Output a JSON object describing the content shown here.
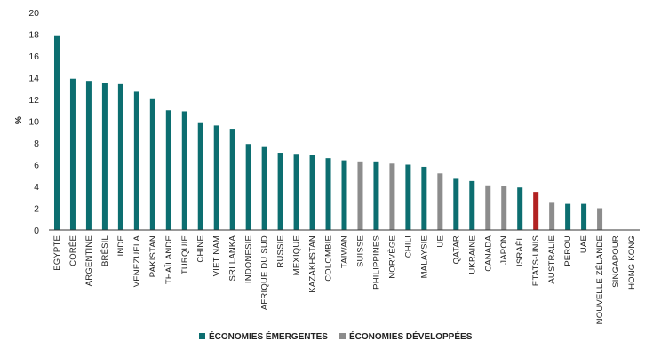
{
  "chart_data": {
    "type": "bar",
    "title": "",
    "xlabel": "",
    "ylabel": "%",
    "ylim": [
      0,
      20
    ],
    "yticks": [
      0,
      2,
      4,
      6,
      8,
      10,
      12,
      14,
      16,
      18,
      20
    ],
    "grid": false,
    "legend_position": "bottom",
    "categories": [
      "EGYPTE",
      "CORÉE",
      "ARGENTINE",
      "BRÉSIL",
      "INDE",
      "VENEZUELA",
      "PAKISTAN",
      "THAÏLANDE",
      "TURQUIE",
      "CHINE",
      "VIET NAM",
      "SRI LANKA",
      "INDONESIE",
      "AFRIQUE DU SUD",
      "RUSSIE",
      "MEXIQUE",
      "KAZAKHSTAN",
      "COLOMBIE",
      "TAIWAN",
      "SUISSE",
      "PHILIPPINES",
      "NORVÈGE",
      "CHILI",
      "MALAYSIE",
      "UE",
      "QATAR",
      "UKRAINE",
      "CANADA",
      "JAPON",
      "ISRAËL",
      "ETATS-UNIS",
      "AUSTRALIE",
      "PEROU",
      "UAE",
      "NOUVELLE ZÉLANDE",
      "SINGAPOUR",
      "HONG KONG"
    ],
    "values": [
      17.9,
      13.9,
      13.7,
      13.5,
      13.4,
      12.7,
      12.1,
      11.0,
      10.9,
      9.9,
      9.6,
      9.3,
      7.9,
      7.7,
      7.1,
      7.0,
      6.9,
      6.6,
      6.4,
      6.3,
      6.3,
      6.1,
      6.0,
      5.8,
      5.2,
      4.7,
      4.5,
      4.1,
      4.0,
      3.9,
      3.5,
      2.5,
      2.4,
      2.4,
      2.0,
      0,
      0
    ],
    "groups": [
      "emerging",
      "emerging",
      "emerging",
      "emerging",
      "emerging",
      "emerging",
      "emerging",
      "emerging",
      "emerging",
      "emerging",
      "emerging",
      "emerging",
      "emerging",
      "emerging",
      "emerging",
      "emerging",
      "emerging",
      "emerging",
      "emerging",
      "developed",
      "emerging",
      "developed",
      "emerging",
      "emerging",
      "developed",
      "emerging",
      "emerging",
      "developed",
      "developed",
      "emerging",
      "highlight",
      "developed",
      "emerging",
      "emerging",
      "developed",
      "developed",
      "developed"
    ],
    "legend": [
      {
        "key": "emerging",
        "label": "ÉCONOMIES ÉMERGENTES"
      },
      {
        "key": "developed",
        "label": "ÉCONOMIES DÉVELOPPÉES"
      }
    ],
    "colors": {
      "emerging": "#0c6e70",
      "developed": "#8c8c8c",
      "highlight": "#b22222",
      "axis": "#333333"
    }
  }
}
